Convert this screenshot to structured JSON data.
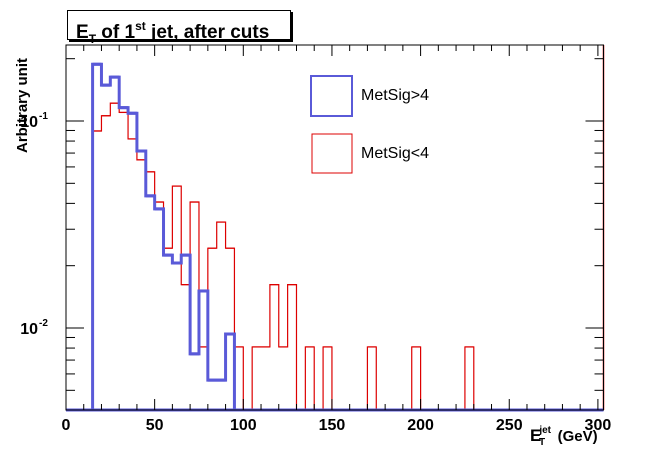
{
  "chart_data": {
    "type": "histogram-step",
    "title_parts": {
      "main": "E",
      "sub": "T",
      "mid": " of 1",
      "sup": "st",
      "rest": " jet, after cuts"
    },
    "title": "E_T of 1st jet, after cuts",
    "xlabel": "E_T^jet (GeV)",
    "xlabel_parts": {
      "main": "E",
      "sup": "jet",
      "sub": "T",
      "unit": "(GeV)"
    },
    "ylabel": "Arbitrary unit",
    "yscale": "log",
    "xlim": [
      0,
      305
    ],
    "ylim": [
      0.00402,
      0.233
    ],
    "xticks": [
      0,
      50,
      100,
      150,
      200,
      250,
      300
    ],
    "xtick_labels": [
      "0",
      "50",
      "100",
      "150",
      "200",
      "250",
      "300"
    ],
    "yticks": [
      0.1,
      0.01
    ],
    "ytick_labels": [
      {
        "base": "10",
        "exp": "-1"
      },
      {
        "base": "10",
        "exp": "-2"
      }
    ],
    "bin_width": 5,
    "bin_start": 15,
    "series": [
      {
        "name": "MetSig>4",
        "color": "#5a5ad8",
        "values": [
          0.188,
          0.149,
          0.163,
          0.116,
          0.109,
          0.0716,
          0.0435,
          0.0376,
          0.0225,
          0.0206,
          0.0225,
          0.0075,
          0.0151,
          0.0056,
          0.0056,
          0.00935
        ]
      },
      {
        "name": "MetSig<4",
        "color": "#dd0000",
        "values": [
          0.0895,
          0.106,
          0.122,
          0.11,
          0.0819,
          0.0649,
          0.0568,
          0.0406,
          0.0243,
          0.0485,
          0.0162,
          0.0406,
          0.0081,
          0.0243,
          0.0325,
          0.0243,
          0.0081,
          0,
          0.0081,
          0.0081,
          0.0162,
          0.0081,
          0.0162,
          0,
          0.0081,
          0,
          0.0081,
          0,
          0,
          0,
          0,
          0.0081,
          0,
          0,
          0,
          0,
          0.0081,
          0,
          0,
          0,
          0,
          0,
          0.0081
        ]
      }
    ],
    "legend": {
      "placement": "top-center",
      "entries": [
        "MetSig>4",
        "MetSig<4"
      ]
    }
  }
}
